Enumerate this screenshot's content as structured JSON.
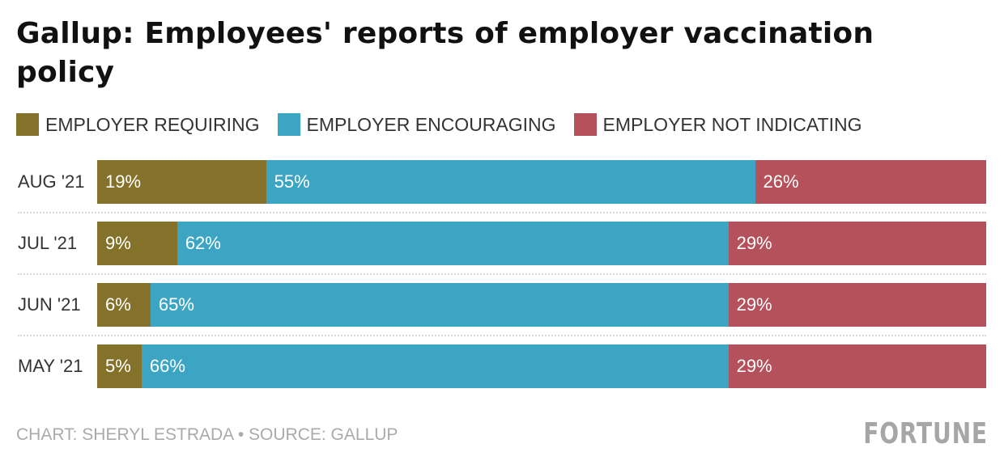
{
  "chart_data": {
    "type": "bar",
    "stacked": true,
    "orientation": "horizontal",
    "title": "Gallup: Employees' reports of employer vaccination policy",
    "categories": [
      "AUG '21",
      "JUL '21",
      "JUN '21",
      "MAY '21"
    ],
    "series": [
      {
        "name": "EMPLOYER REQUIRING",
        "color": "#85722A",
        "values": [
          19,
          9,
          6,
          5
        ]
      },
      {
        "name": "EMPLOYER ENCOURAGING",
        "color": "#3CA5C4",
        "values": [
          55,
          62,
          65,
          66
        ]
      },
      {
        "name": "EMPLOYER NOT INDICATING",
        "color": "#B5515B",
        "values": [
          26,
          29,
          29,
          29
        ]
      }
    ],
    "value_suffix": "%",
    "xlim": [
      0,
      100
    ],
    "legend_position": "top-left",
    "grid": false
  },
  "footer": {
    "credit": "CHART: SHERYL ESTRADA • SOURCE: GALLUP",
    "logo": "FORTUNE"
  }
}
